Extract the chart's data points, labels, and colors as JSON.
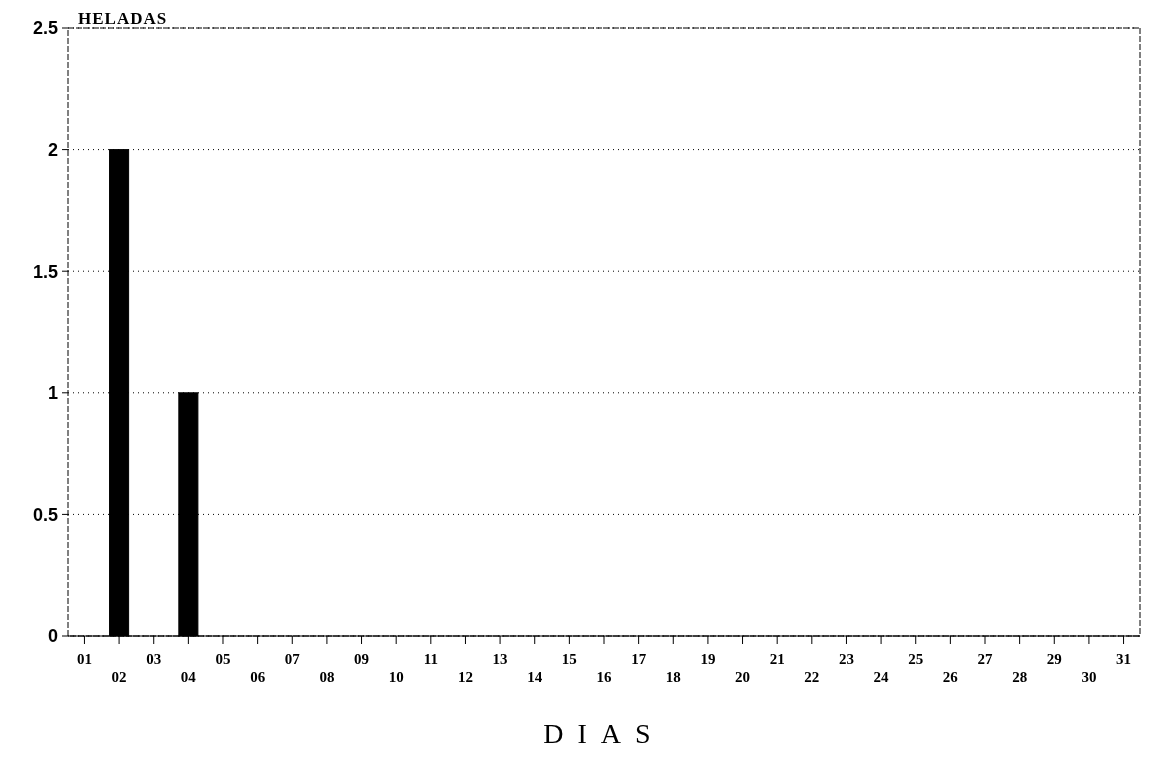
{
  "chart_data": {
    "type": "bar",
    "ylabel": "HELADAS",
    "xlabel": "DIAS",
    "categories": [
      "01",
      "02",
      "03",
      "04",
      "05",
      "06",
      "07",
      "08",
      "09",
      "10",
      "11",
      "12",
      "13",
      "14",
      "15",
      "16",
      "17",
      "18",
      "19",
      "20",
      "21",
      "22",
      "23",
      "24",
      "25",
      "26",
      "27",
      "28",
      "29",
      "30",
      "31"
    ],
    "values": [
      0,
      2,
      0,
      1,
      0,
      0,
      0,
      0,
      0,
      0,
      0,
      0,
      0,
      0,
      0,
      0,
      0,
      0,
      0,
      0,
      0,
      0,
      0,
      0,
      0,
      0,
      0,
      0,
      0,
      0,
      0
    ],
    "color": "#000000",
    "ylim": [
      0,
      2.5
    ],
    "yticks": [
      0,
      0.5,
      1,
      1.5,
      2,
      2.5
    ],
    "grid": "y"
  }
}
